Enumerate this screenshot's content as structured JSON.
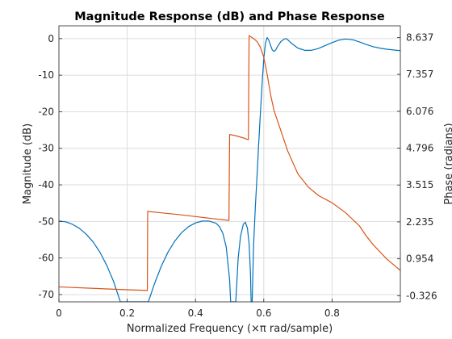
{
  "chart_data": {
    "type": "line",
    "title": "Magnitude Response (dB) and Phase Response",
    "xlabel": "Normalized Frequency (×π rad/sample)",
    "ylabel_left": "Magnitude (dB)",
    "ylabel_right": "Phase (radians)",
    "xlim": [
      0,
      1
    ],
    "ylim_left": [
      -72,
      3.5
    ],
    "ylim_right": [
      -0.54,
      9.04
    ],
    "grid": true,
    "x_ticks": [
      "0",
      "0.2",
      "0.4",
      "0.6",
      "0.8"
    ],
    "x_tick_values": [
      0,
      0.2,
      0.4,
      0.6,
      0.8
    ],
    "left_ticks": [
      "0",
      "-10",
      "-20",
      "-30",
      "-40",
      "-50",
      "-60",
      "-70"
    ],
    "left_tick_values": [
      0,
      -10,
      -20,
      -30,
      -40,
      -50,
      -60,
      -70
    ],
    "right_ticks": [
      "8.637",
      "7.357",
      "6.076",
      "4.796",
      "3.515",
      "2.235",
      "0.954",
      "-0.326"
    ],
    "right_tick_values": [
      8.637,
      7.357,
      6.076,
      4.796,
      3.515,
      2.235,
      0.954,
      -0.326
    ],
    "series": [
      {
        "name": "",
        "axis": "left",
        "color": "#0072bd",
        "points": [
          [
            0,
            -49.9
          ],
          [
            0.02,
            -50.1
          ],
          [
            0.04,
            -50.8
          ],
          [
            0.06,
            -51.9
          ],
          [
            0.08,
            -53.5
          ],
          [
            0.1,
            -55.6
          ],
          [
            0.12,
            -58.4
          ],
          [
            0.14,
            -62
          ],
          [
            0.16,
            -66.4
          ],
          [
            0.18,
            -72
          ],
          [
            0.2,
            -72
          ],
          [
            0.25,
            -72
          ],
          [
            0.262,
            -72
          ],
          [
            0.28,
            -67
          ],
          [
            0.3,
            -62.2
          ],
          [
            0.32,
            -58.3
          ],
          [
            0.34,
            -55.3
          ],
          [
            0.36,
            -53
          ],
          [
            0.38,
            -51.4
          ],
          [
            0.4,
            -50.4
          ],
          [
            0.42,
            -49.9
          ],
          [
            0.44,
            -49.9
          ],
          [
            0.46,
            -50.5
          ],
          [
            0.47,
            -51.4
          ],
          [
            0.48,
            -53.2
          ],
          [
            0.49,
            -57
          ],
          [
            0.5,
            -66
          ],
          [
            0.503,
            -72
          ],
          [
            0.51,
            -72
          ],
          [
            0.518,
            -72
          ],
          [
            0.525,
            -60
          ],
          [
            0.532,
            -54
          ],
          [
            0.54,
            -50.8
          ],
          [
            0.546,
            -50.2
          ],
          [
            0.552,
            -51.8
          ],
          [
            0.557,
            -56
          ],
          [
            0.561,
            -64
          ],
          [
            0.563,
            -72
          ],
          [
            0.566,
            -72
          ],
          [
            0.57,
            -57
          ],
          [
            0.575,
            -46.5
          ],
          [
            0.58,
            -38
          ],
          [
            0.585,
            -29
          ],
          [
            0.59,
            -20.5
          ],
          [
            0.595,
            -12.5
          ],
          [
            0.6,
            -5.5
          ],
          [
            0.605,
            -1.2
          ],
          [
            0.61,
            0.3
          ],
          [
            0.615,
            -0.5
          ],
          [
            0.62,
            -1.9
          ],
          [
            0.625,
            -3.1
          ],
          [
            0.63,
            -3.5
          ],
          [
            0.635,
            -3.1
          ],
          [
            0.64,
            -2.2
          ],
          [
            0.65,
            -0.8
          ],
          [
            0.66,
            -0.1
          ],
          [
            0.665,
            0
          ],
          [
            0.67,
            -0.3
          ],
          [
            0.68,
            -1.2
          ],
          [
            0.7,
            -2.6
          ],
          [
            0.72,
            -3.2
          ],
          [
            0.74,
            -3.2
          ],
          [
            0.76,
            -2.7
          ],
          [
            0.78,
            -1.9
          ],
          [
            0.8,
            -1.1
          ],
          [
            0.82,
            -0.4
          ],
          [
            0.84,
            -0.1
          ],
          [
            0.86,
            -0.3
          ],
          [
            0.88,
            -0.9
          ],
          [
            0.9,
            -1.6
          ],
          [
            0.92,
            -2.2
          ],
          [
            0.94,
            -2.6
          ],
          [
            0.96,
            -2.9
          ],
          [
            0.98,
            -3.1
          ],
          [
            1,
            -3.3
          ]
        ]
      },
      {
        "name": "",
        "axis": "right",
        "color": "#d95319",
        "points": [
          [
            0,
            -0.02
          ],
          [
            0.1,
            -0.07
          ],
          [
            0.2,
            -0.12
          ],
          [
            0.255,
            -0.14
          ],
          [
            0.258,
            -0.15
          ],
          [
            0.259,
            -0.15
          ],
          [
            0.26,
            2.6
          ],
          [
            0.3,
            2.55
          ],
          [
            0.35,
            2.49
          ],
          [
            0.4,
            2.42
          ],
          [
            0.45,
            2.35
          ],
          [
            0.497,
            2.29
          ],
          [
            0.498,
            2.29
          ],
          [
            0.5,
            5.27
          ],
          [
            0.52,
            5.22
          ],
          [
            0.54,
            5.15
          ],
          [
            0.554,
            5.09
          ],
          [
            0.555,
            5.09
          ],
          [
            0.557,
            8.7
          ],
          [
            0.57,
            8.6
          ],
          [
            0.58,
            8.5
          ],
          [
            0.59,
            8.3
          ],
          [
            0.6,
            7.95
          ],
          [
            0.61,
            7.35
          ],
          [
            0.62,
            6.65
          ],
          [
            0.63,
            6.1
          ],
          [
            0.64,
            5.75
          ],
          [
            0.65,
            5.4
          ],
          [
            0.67,
            4.7
          ],
          [
            0.7,
            3.9
          ],
          [
            0.73,
            3.45
          ],
          [
            0.76,
            3.15
          ],
          [
            0.8,
            2.9
          ],
          [
            0.84,
            2.55
          ],
          [
            0.88,
            2.1
          ],
          [
            0.9,
            1.75
          ],
          [
            0.92,
            1.45
          ],
          [
            0.94,
            1.2
          ],
          [
            0.96,
            0.95
          ],
          [
            0.98,
            0.75
          ],
          [
            1,
            0.55
          ]
        ]
      }
    ]
  }
}
